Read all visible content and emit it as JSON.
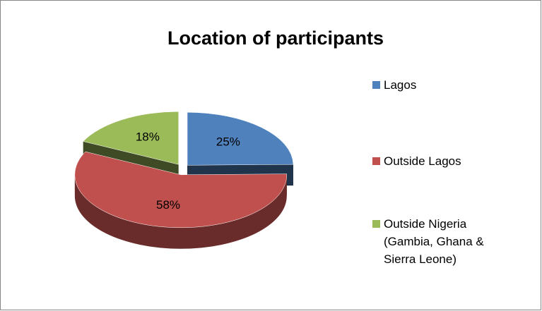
{
  "chart_data": {
    "type": "pie",
    "title": "Location of participants",
    "categories": [
      "Lagos",
      "Outside Lagos",
      "Outside Nigeria (Gambia, Ghana & Sierra Leone)"
    ],
    "values": [
      25,
      58,
      18
    ],
    "value_labels": [
      "25%",
      "58%",
      "18%"
    ],
    "colors": [
      "#4f81bd",
      "#c0504d",
      "#9bbb59"
    ],
    "legend": "right"
  }
}
